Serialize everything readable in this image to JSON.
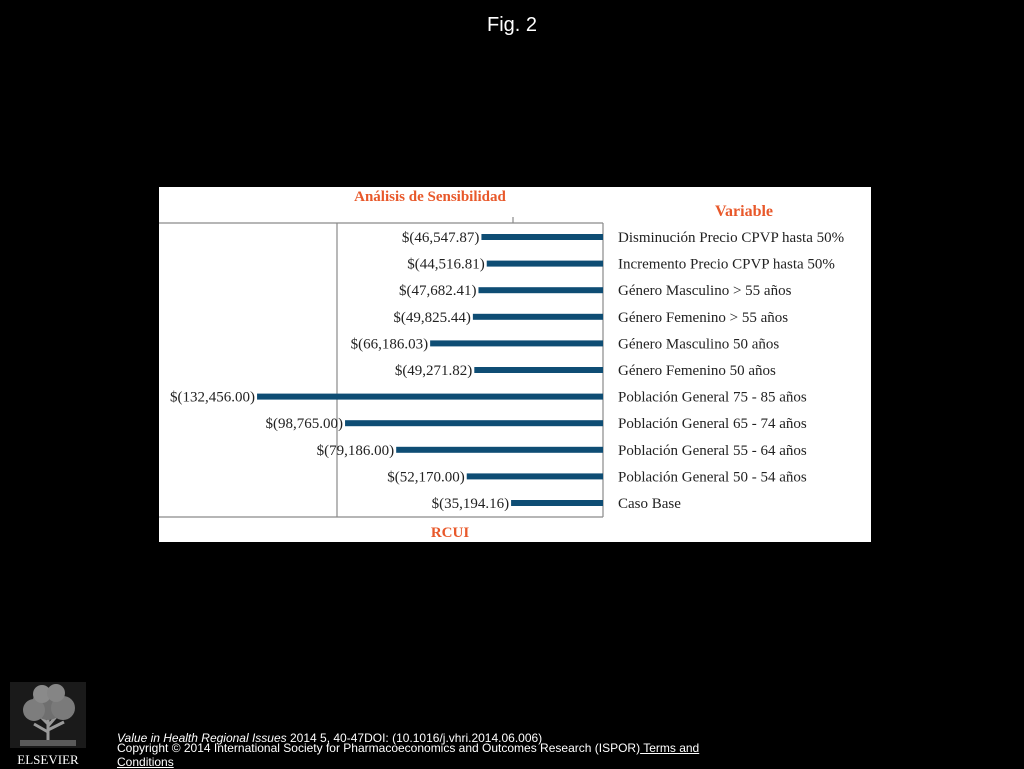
{
  "page": {
    "figure_title": "Fig. 2"
  },
  "chart_data": {
    "type": "bar",
    "orientation": "horizontal",
    "title": "Análisis de Sensibilidad",
    "legend_title": "Variable",
    "xlabel": "RCUI",
    "categories": [
      "Disminución Precio CPVP hasta 50%",
      "Incremento Precio CPVP hasta 50%",
      "Género Masculino > 55 años",
      "Género Femenino > 55 años",
      "Género Masculino 50 años",
      "Género Femenino 50 años",
      "Población General 75 - 85 años",
      "Población General 65 - 74 años",
      "Población General 55 - 64 años",
      "Población General 50 - 54 años",
      "Caso Base"
    ],
    "values": [
      -46547.87,
      -44516.81,
      -47682.41,
      -49825.44,
      -66186.03,
      -49271.82,
      -132456.0,
      -98765.0,
      -79186.0,
      -52170.0,
      -35194.16
    ],
    "value_labels": [
      "$(46,547.87)",
      "$(44,516.81)",
      "$(47,682.41)",
      "$(49,825.44)",
      "$(66,186.03)",
      "$(49,271.82)",
      "$(132,456.00)",
      "$(98,765.00)",
      "$(79,186.00)",
      "$(52,170.00)",
      "$(35,194.16)"
    ],
    "xlim": [
      -170000,
      0
    ],
    "colors": {
      "bar": "#0e4d74",
      "title": "#e8582a",
      "grid": "#8a8a8a"
    }
  },
  "footer": {
    "journal": "Value in Health Regional Issues",
    "citation": " 2014 5, 40-47DOI: (10.1016/j.vhri.2014.06.006)",
    "copyright": "Copyright © 2014 International Society for Pharmacoeconomics and Outcomes Research (ISPOR)",
    "terms_link": " Terms and Conditions",
    "publisher": "ELSEVIER"
  }
}
